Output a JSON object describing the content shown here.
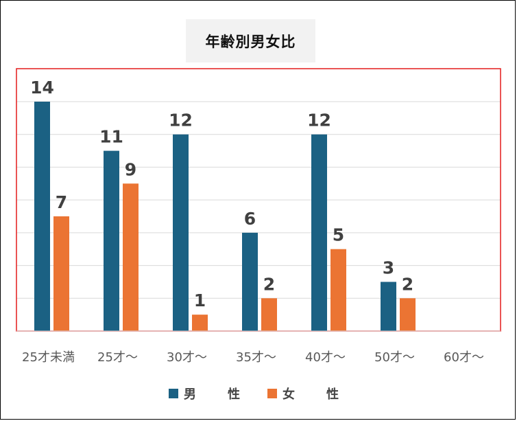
{
  "chart_data": {
    "type": "bar",
    "title": "年齢別男女比",
    "categories": [
      "25才未満",
      "25才～",
      "30才～",
      "35才～",
      "40才～",
      "50才～",
      "60才～"
    ],
    "series": [
      {
        "name": "男　性",
        "color": "#1b6183",
        "values": [
          14,
          11,
          12,
          6,
          12,
          3,
          null
        ]
      },
      {
        "name": "女　性",
        "color": "#eb7433",
        "values": [
          7,
          9,
          1,
          2,
          5,
          2,
          null
        ]
      }
    ],
    "ylim": [
      0,
      14
    ],
    "grid": true,
    "legend": "bottom",
    "plot_border_color": "#e31b1b"
  }
}
